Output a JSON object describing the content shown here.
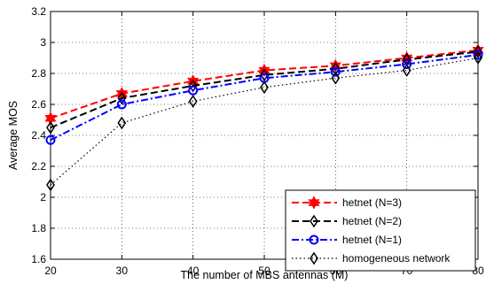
{
  "chart_data": {
    "type": "line",
    "title": "",
    "xlabel": "The number of MBS antennas (M)",
    "ylabel": "Average MOS",
    "xlim": [
      20,
      80
    ],
    "ylim": [
      1.6,
      3.2
    ],
    "xticks": [
      "20",
      "30",
      "40",
      "50",
      "60",
      "70",
      "80"
    ],
    "yticks": [
      "1.6",
      "1.8",
      "2",
      "2.2",
      "2.4",
      "2.6",
      "2.8",
      "3",
      "3.2"
    ],
    "grid": true,
    "legend_position": "bottom-right",
    "x": [
      20,
      30,
      40,
      50,
      60,
      70,
      80
    ],
    "series": [
      {
        "name": "hetnet (N=3)",
        "values": [
          2.51,
          2.67,
          2.75,
          2.82,
          2.85,
          2.9,
          2.95
        ],
        "color": "#ff0000",
        "line_style": "dashed",
        "marker": "hexagram"
      },
      {
        "name": "hetnet (N=2)",
        "values": [
          2.45,
          2.64,
          2.72,
          2.79,
          2.83,
          2.89,
          2.94
        ],
        "color": "#000000",
        "line_style": "dashed",
        "marker": "diamond"
      },
      {
        "name": "hetnet (N=1)",
        "values": [
          2.37,
          2.6,
          2.69,
          2.77,
          2.81,
          2.86,
          2.92
        ],
        "color": "#0000ff",
        "line_style": "dash-dot",
        "marker": "circle"
      },
      {
        "name": "homogeneous network",
        "values": [
          2.08,
          2.48,
          2.62,
          2.71,
          2.77,
          2.82,
          2.9
        ],
        "color": "#000000",
        "line_style": "dotted",
        "marker": "diamond"
      }
    ]
  }
}
